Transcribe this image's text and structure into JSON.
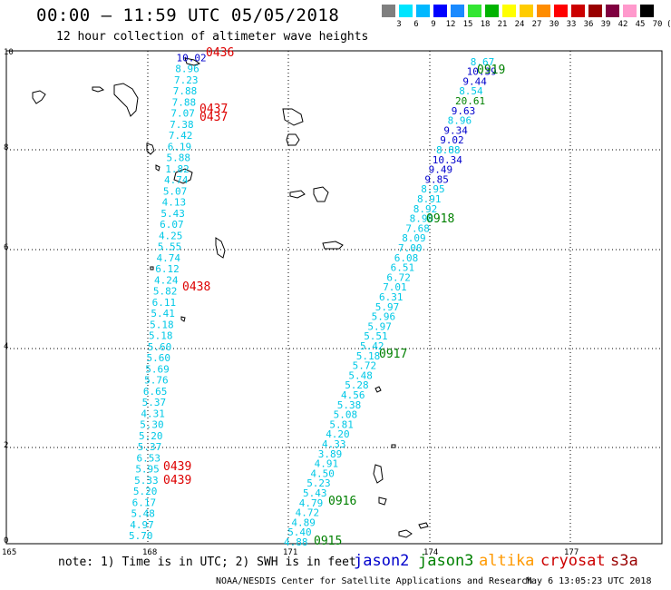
{
  "title": "00:00 – 11:59 UTC 05/05/2018",
  "subtitle": "12 hour collection of altimeter wave heights",
  "colorbar": {
    "colors": [
      "#7f7f7f",
      "#00e5ff",
      "#00b8ff",
      "#0000ff",
      "#1a8aff",
      "#33e633",
      "#00b300",
      "#ffff00",
      "#ffcc00",
      "#ff8c00",
      "#ff0000",
      "#cc0000",
      "#990000",
      "#800040",
      "#ff99cc",
      "#000000"
    ],
    "labels": [
      "3",
      "6",
      "9",
      "12",
      "15",
      "18",
      "21",
      "24",
      "27",
      "30",
      "33",
      "36",
      "39",
      "42",
      "45",
      "70",
      "(ft)"
    ]
  },
  "axes": {
    "x_ticks": [
      "165",
      "168",
      "171",
      "174",
      "177"
    ],
    "y_ticks": [
      "0",
      "2",
      "4",
      "6",
      "8",
      "10"
    ]
  },
  "passes": {
    "left_left": [
      "5.70",
      "4.97",
      "5.48",
      "6.17",
      "5.20",
      "5.33",
      "5.95",
      "6.53",
      "5.37",
      "5.20",
      "5.30",
      "4.31",
      "5.37",
      "6.65",
      "5.76",
      "5.69",
      "5.60",
      "5.60",
      "5.18",
      "5.18",
      "5.41",
      "6.11",
      "5.82",
      "4.24",
      "6.12",
      "4.74",
      "5.55",
      "4.25",
      "6.07",
      "5.43",
      "4.13",
      "5.07",
      "4.74",
      "1.82",
      "5.88",
      "6.19",
      "7.42",
      "7.38",
      "7.07",
      "7.88",
      "7.88",
      "7.23",
      "8.96",
      "10.02"
    ],
    "right_right": [
      "4.88",
      "5.40",
      "4.89",
      "4.72",
      "4.79",
      "5.43",
      "5.23",
      "4.50",
      "4.91",
      "3.89",
      "4.33",
      "4.20",
      "5.81",
      "5.08",
      "5.38",
      "4.56",
      "5.28",
      "5.48",
      "5.72",
      "5.18",
      "5.42",
      "5.51",
      "5.97",
      "5.96",
      "5.97",
      "6.31",
      "7.01",
      "6.72",
      "6.51",
      "6.08",
      "7.00",
      "8.09",
      "7.68",
      "8.98",
      "8.92",
      "8.91",
      "8.95",
      "9.85",
      "9.49",
      "10.34",
      "8.88",
      "9.02",
      "9.34",
      "8.96",
      "9.63",
      "20.61",
      "8.54",
      "9.44",
      "10.39",
      "8.67"
    ]
  },
  "time_labels": {
    "t0436": "0436",
    "t0437a": "0437",
    "t0437b": "0437",
    "t0438": "0438",
    "t0439a": "0439",
    "t0439b": "0439",
    "t0919": "0919",
    "t0918": "0918",
    "t0917": "0917",
    "t0916": "0916",
    "t0915": "0915"
  },
  "legend": {
    "note": "note:  1) Time is in UTC; 2) SWH is in feet",
    "satellites": [
      {
        "name": "jason2",
        "color": "#0000cc"
      },
      {
        "name": "jason3",
        "color": "#008000"
      },
      {
        "name": "altika",
        "color": "#ff9900"
      },
      {
        "name": "cryosat",
        "color": "#cc0000"
      },
      {
        "name": "s3a",
        "color": "#990000"
      }
    ]
  },
  "credit": "NOAA/NESDIS Center for Satellite Applications and Research",
  "timestamp": "May  6 13:05:23 UTC 2018"
}
